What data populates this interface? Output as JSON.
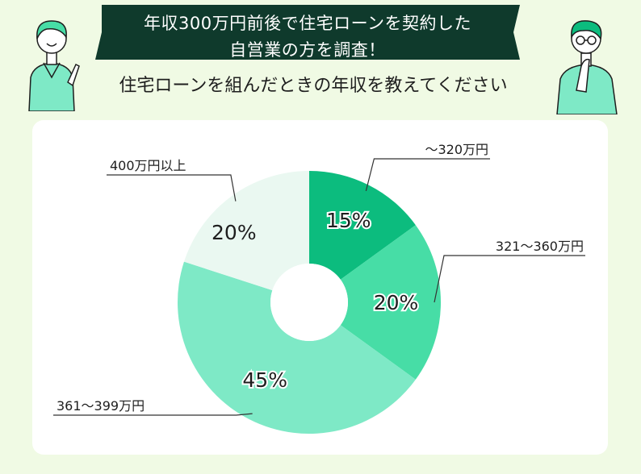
{
  "header": {
    "title_line1": "年収300万円前後で住宅ローンを契約した",
    "title_line2": "自営業の方を調査！",
    "question": "住宅ローンを組んだときの年収を教えてください"
  },
  "colors": {
    "background": "#f0fae4",
    "banner": "#0f3a2c",
    "slice1": "#0cbc7e",
    "slice2": "#47dda6",
    "slice3": "#7ee9c6",
    "slice4": "#eaf8f1"
  },
  "chart_data": {
    "type": "pie",
    "donut": true,
    "categories": [
      "～320万円",
      "321～360万円",
      "361～399万円",
      "400万円以上"
    ],
    "values": [
      15,
      20,
      45,
      20
    ],
    "value_labels": [
      "15%",
      "20%",
      "45%",
      "20%"
    ],
    "title": "",
    "legend": "none"
  }
}
